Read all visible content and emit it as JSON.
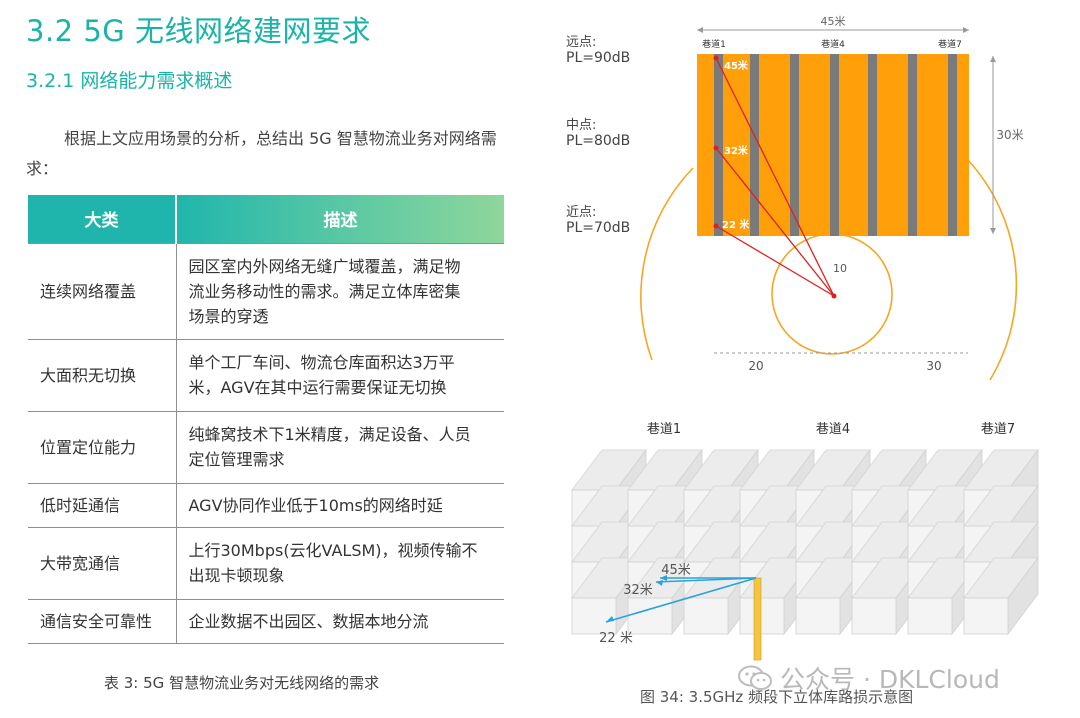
{
  "heading": "3.2 5G 无线网络建网要求",
  "subheading": "3.2.1 网络能力需求概述",
  "paragraph": "根据上文应用场景的分析，总结出 5G 智慧物流业务对网络需求：",
  "table": {
    "headers": [
      "大类",
      "描述"
    ],
    "rows": [
      {
        "category": "连续网络覆盖",
        "lines": [
          "园区室内外网络无缝广域覆盖，满足物",
          "流业务移动性的需求。满足立体库密集",
          "场景的穿透"
        ]
      },
      {
        "category": "大面积无切换",
        "lines": [
          "单个工厂车间、物流仓库面积达3万平",
          "米，AGV在其中运行需要保证无切换"
        ]
      },
      {
        "category": "位置定位能力",
        "lines": [
          "纯蜂窝技术下1米精度，满足设备、人员",
          "定位管理需求"
        ]
      },
      {
        "category": "低时延通信",
        "lines": [
          "AGV协同作业低于10ms的网络时延"
        ]
      },
      {
        "category": "大带宽通信",
        "lines": [
          "上行30Mbps(云化VALSM)，视频传输不",
          "出现卡顿现象"
        ]
      },
      {
        "category": "通信安全可靠性",
        "lines": [
          "企业数据不出园区、数据本地分流"
        ]
      }
    ],
    "caption": "表 3: 5G 智慧物流业务对无线网络的需求"
  },
  "figure": {
    "top": {
      "width_label": "45米",
      "height_label": "30米",
      "aisles": [
        "巷道1",
        "巷道4",
        "巷道7"
      ],
      "points": [
        {
          "name": "远点:",
          "pl": "PL=90dB"
        },
        {
          "name": "中点:",
          "pl": "PL=80dB"
        },
        {
          "name": "近点:",
          "pl": "PL=70dB"
        }
      ],
      "distances": [
        "45米",
        "32米",
        "22 米"
      ],
      "radius_labels": [
        "10",
        "20",
        "30"
      ]
    },
    "bottom": {
      "aisles": [
        "巷道1",
        "巷道4",
        "巷道7"
      ],
      "distances": [
        "45米",
        "32米",
        "22 米"
      ]
    },
    "caption": "图 34: 3.5GHz 频段下立体库路损示意图",
    "colors": {
      "rack": "#ff9f0a",
      "aisle": "#7a7a7a",
      "ray_top": "#e02020",
      "ray_bottom": "#29a3dc",
      "circle": "#f5a623"
    }
  },
  "watermark": "公众号 · DKLCloud"
}
